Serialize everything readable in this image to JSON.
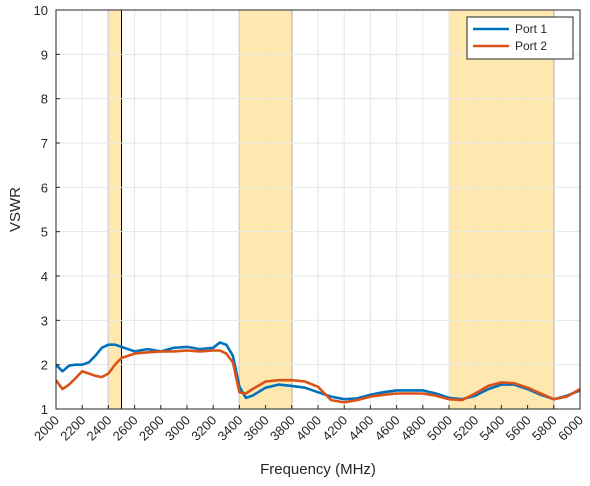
{
  "chart_data": {
    "type": "line",
    "title": "",
    "xlabel": "Frequency (MHz)",
    "ylabel": "VSWR",
    "xlim": [
      2000,
      6000
    ],
    "ylim": [
      1,
      10
    ],
    "x_ticks": [
      2000,
      2200,
      2400,
      2600,
      2800,
      3000,
      3200,
      3400,
      3600,
      3800,
      4000,
      4200,
      4400,
      4600,
      4800,
      5000,
      5200,
      5400,
      5600,
      5800,
      6000
    ],
    "y_ticks": [
      1,
      2,
      3,
      4,
      5,
      6,
      7,
      8,
      9,
      10
    ],
    "grid": true,
    "legend_position": "top-right",
    "highlight_bands": [
      {
        "start": 2400,
        "end": 2500
      },
      {
        "start": 3400,
        "end": 3800
      },
      {
        "start": 5000,
        "end": 5800
      }
    ],
    "colors": {
      "band_fill": "#ffe8b0",
      "band_edge": "#000000",
      "grid": "#e6e6e6",
      "axis": "#262626"
    },
    "series": [
      {
        "name": "Port 1",
        "color": "#0072BD",
        "x": [
          2000,
          2050,
          2100,
          2150,
          2200,
          2250,
          2300,
          2350,
          2400,
          2450,
          2500,
          2600,
          2700,
          2800,
          2900,
          3000,
          3100,
          3200,
          3250,
          3300,
          3350,
          3400,
          3450,
          3500,
          3600,
          3700,
          3800,
          3900,
          4000,
          4100,
          4200,
          4300,
          4400,
          4500,
          4600,
          4700,
          4800,
          4900,
          5000,
          5100,
          5200,
          5300,
          5400,
          5500,
          5600,
          5700,
          5800,
          5900,
          6000
        ],
        "y": [
          2.0,
          1.85,
          1.98,
          2.0,
          2.0,
          2.05,
          2.2,
          2.38,
          2.45,
          2.45,
          2.4,
          2.3,
          2.35,
          2.3,
          2.38,
          2.4,
          2.35,
          2.38,
          2.5,
          2.45,
          2.2,
          1.5,
          1.25,
          1.3,
          1.48,
          1.55,
          1.52,
          1.48,
          1.38,
          1.28,
          1.22,
          1.24,
          1.32,
          1.38,
          1.42,
          1.42,
          1.42,
          1.35,
          1.25,
          1.22,
          1.3,
          1.45,
          1.55,
          1.55,
          1.45,
          1.32,
          1.22,
          1.3,
          1.42
        ]
      },
      {
        "name": "Port 2",
        "color": "#D95319",
        "x": [
          2000,
          2050,
          2100,
          2150,
          2200,
          2250,
          2300,
          2350,
          2400,
          2450,
          2500,
          2600,
          2700,
          2800,
          2900,
          3000,
          3100,
          3200,
          3250,
          3300,
          3350,
          3400,
          3450,
          3500,
          3600,
          3700,
          3800,
          3900,
          4000,
          4100,
          4200,
          4300,
          4400,
          4500,
          4600,
          4700,
          4800,
          4900,
          5000,
          5100,
          5200,
          5300,
          5400,
          5500,
          5600,
          5700,
          5800,
          5900,
          6000
        ],
        "y": [
          1.65,
          1.45,
          1.55,
          1.7,
          1.85,
          1.8,
          1.75,
          1.72,
          1.8,
          2.0,
          2.15,
          2.25,
          2.28,
          2.3,
          2.3,
          2.32,
          2.3,
          2.32,
          2.32,
          2.25,
          2.05,
          1.38,
          1.35,
          1.45,
          1.62,
          1.65,
          1.65,
          1.62,
          1.5,
          1.2,
          1.15,
          1.2,
          1.28,
          1.32,
          1.35,
          1.35,
          1.35,
          1.3,
          1.22,
          1.2,
          1.35,
          1.52,
          1.6,
          1.58,
          1.48,
          1.35,
          1.22,
          1.28,
          1.45
        ]
      }
    ]
  }
}
